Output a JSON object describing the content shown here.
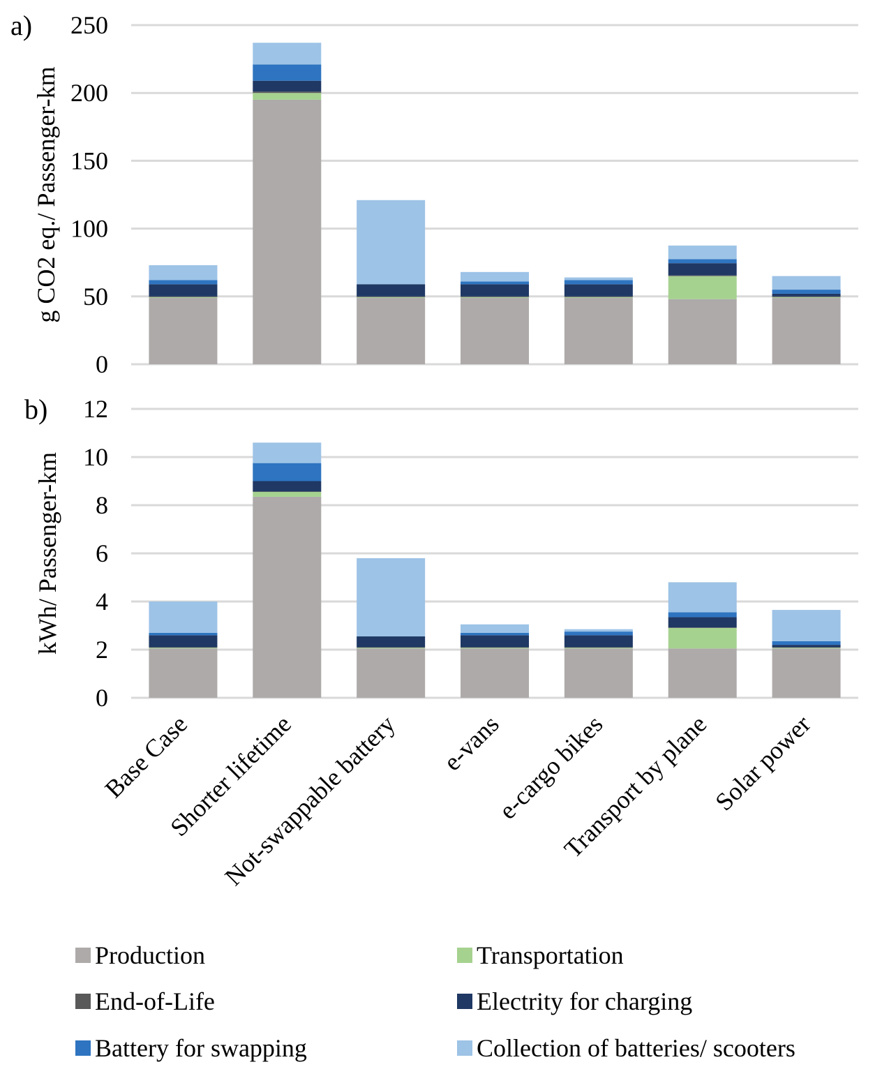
{
  "colors": {
    "production": "#ADAAA9",
    "transportation": "#A6D290",
    "end_of_life": "#595959",
    "electricity": "#1F3864",
    "battery_swapping": "#2E74C0",
    "collection": "#9DC3E6",
    "grid": "#D9D9D9"
  },
  "chart_data": [
    {
      "type": "bar",
      "stacked": true,
      "panel_label": "a)",
      "ylabel": "g CO2 eq./ Passenger-km",
      "ylim": [
        0,
        250
      ],
      "yticks": [
        0,
        50,
        100,
        150,
        200,
        250
      ],
      "grid": true,
      "categories": [
        "Base Case",
        "Shorter lifetime",
        "Not-swappable battery",
        "e-vans",
        "e-cargo bikes",
        "Transport by plane",
        "Solar power"
      ],
      "series": [
        {
          "name": "Production",
          "color_key": "production",
          "values": [
            49,
            195,
            49,
            49,
            49,
            48,
            49
          ]
        },
        {
          "name": "Transportation",
          "color_key": "transportation",
          "values": [
            0.5,
            5,
            0.5,
            0.5,
            0.5,
            17,
            0.5
          ]
        },
        {
          "name": "End-of-Life",
          "color_key": "end_of_life",
          "values": [
            0.5,
            1,
            0.5,
            0.5,
            0.5,
            0.5,
            0.5
          ]
        },
        {
          "name": "Electrity for charging",
          "color_key": "electricity",
          "values": [
            9,
            8,
            9,
            9,
            9,
            9,
            2
          ]
        },
        {
          "name": "Battery for swapping",
          "color_key": "battery_swapping",
          "values": [
            3,
            12,
            0,
            2,
            3,
            3,
            3
          ]
        },
        {
          "name": "Collection of batteries/ scooters",
          "color_key": "collection",
          "values": [
            11,
            16,
            62,
            7,
            2,
            10,
            10
          ]
        }
      ]
    },
    {
      "type": "bar",
      "stacked": true,
      "panel_label": "b)",
      "ylabel": "kWh/ Passenger-km",
      "ylim": [
        0,
        12
      ],
      "yticks": [
        0,
        2,
        4,
        6,
        8,
        10,
        12
      ],
      "grid": true,
      "categories": [
        "Base Case",
        "Shorter lifetime",
        "Not-swappable battery",
        "e-vans",
        "e-cargo bikes",
        "Transport by plane",
        "Solar power"
      ],
      "series": [
        {
          "name": "Production",
          "color_key": "production",
          "values": [
            2.05,
            8.35,
            2.05,
            2.05,
            2.05,
            2.05,
            2.05
          ]
        },
        {
          "name": "Transportation",
          "color_key": "transportation",
          "values": [
            0.03,
            0.2,
            0.03,
            0.03,
            0.03,
            0.85,
            0.03
          ]
        },
        {
          "name": "End-of-Life",
          "color_key": "end_of_life",
          "values": [
            0.02,
            0.02,
            0.02,
            0.02,
            0.02,
            0.02,
            0.02
          ]
        },
        {
          "name": "Electrity for charging",
          "color_key": "electricity",
          "values": [
            0.5,
            0.43,
            0.45,
            0.5,
            0.5,
            0.43,
            0.1
          ]
        },
        {
          "name": "Battery for swapping",
          "color_key": "battery_swapping",
          "values": [
            0.1,
            0.75,
            0,
            0.1,
            0.15,
            0.2,
            0.15
          ]
        },
        {
          "name": "Collection of batteries/ scooters",
          "color_key": "collection",
          "values": [
            1.3,
            0.85,
            3.25,
            0.35,
            0.1,
            1.25,
            1.3
          ]
        }
      ]
    }
  ],
  "legend": {
    "placement": "bottom",
    "items": [
      {
        "label": "Production",
        "color_key": "production"
      },
      {
        "label": "Transportation",
        "color_key": "transportation"
      },
      {
        "label": "End-of-Life",
        "color_key": "end_of_life"
      },
      {
        "label": "Electrity for charging",
        "color_key": "electricity"
      },
      {
        "label": "Battery for swapping",
        "color_key": "battery_swapping"
      },
      {
        "label": "Collection of batteries/ scooters",
        "color_key": "collection"
      }
    ]
  }
}
